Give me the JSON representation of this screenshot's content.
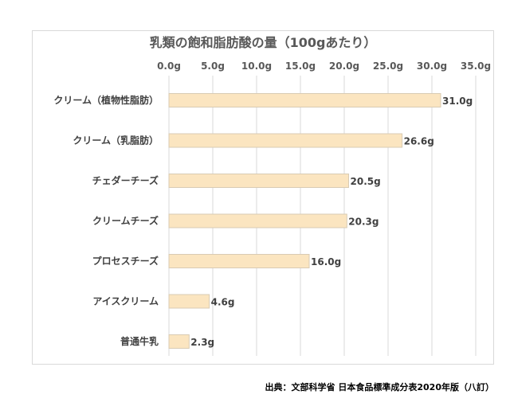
{
  "colors": {
    "bar_fill": "#fbe5c0",
    "bar_edge": "#d9cbb3",
    "grid": "#d9d9d9",
    "axis_text": "#595959",
    "label_text": "#404040"
  },
  "source": "出典：文部科学省 日本食品標準成分表2020年版（八訂）",
  "chart_data": {
    "type": "bar",
    "orientation": "horizontal",
    "title": "乳類の飽和脂肪酸の量（100gあたり）",
    "categories": [
      "クリーム（植物性脂肪）",
      "クリーム（乳脂肪）",
      "チェダーチーズ",
      "クリームチーズ",
      "プロセスチーズ",
      "アイスクリーム",
      "普通牛乳"
    ],
    "values": [
      31.0,
      26.6,
      20.5,
      20.3,
      16.0,
      4.6,
      2.3
    ],
    "value_labels": [
      "31.0g",
      "26.6g",
      "20.5g",
      "20.3g",
      "16.0g",
      "4.6g",
      "2.3g"
    ],
    "xlim": [
      0,
      35
    ],
    "xticks": [
      0,
      5,
      10,
      15,
      20,
      25,
      30,
      35
    ],
    "xtick_labels": [
      "0.0g",
      "5.0g",
      "10.0g",
      "15.0g",
      "20.0g",
      "25.0g",
      "30.0g",
      "35.0g"
    ],
    "x_axis_position": "top",
    "grid": true,
    "legend": false
  }
}
